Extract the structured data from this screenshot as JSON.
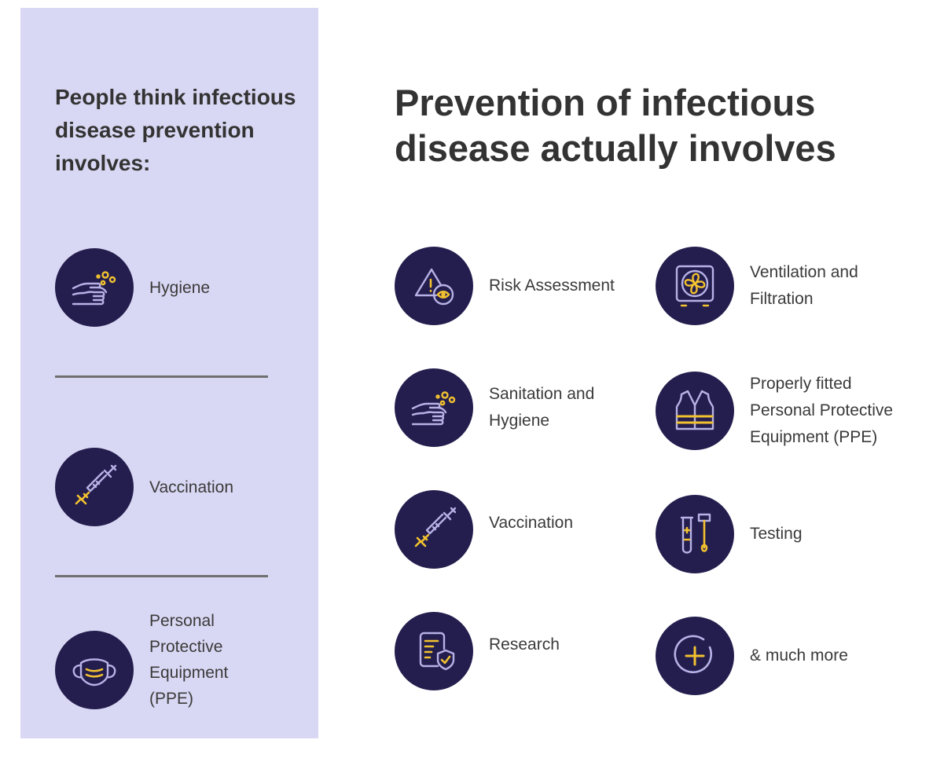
{
  "left": {
    "heading": "People think infectious disease prevention involves:",
    "items": [
      {
        "label": "Hygiene",
        "icon": "hands-washing-icon"
      },
      {
        "label": "Vaccination",
        "icon": "syringe-icon"
      },
      {
        "label": "Personal Protective Equipment (PPE)",
        "icon": "face-mask-icon"
      }
    ]
  },
  "right": {
    "heading": "Prevention of infectious disease actually involves",
    "items": [
      {
        "label": "Risk Assessment",
        "icon": "warning-eye-icon"
      },
      {
        "label": "Ventilation and Filtration",
        "icon": "fan-icon"
      },
      {
        "label": "Sanitation and Hygiene",
        "icon": "hands-washing-icon"
      },
      {
        "label": "Properly fitted Personal Protective Equipment (PPE)",
        "icon": "safety-vest-icon"
      },
      {
        "label": "Vaccination",
        "icon": "syringe-icon"
      },
      {
        "label": "Testing",
        "icon": "test-tube-swab-icon"
      },
      {
        "label": "Research",
        "icon": "document-shield-icon"
      },
      {
        "label": "& much more",
        "icon": "plus-circle-icon"
      }
    ]
  },
  "colors": {
    "panel": "#d9d8f4",
    "circle": "#241e4e",
    "icon_stroke": "#b7b2e6",
    "icon_accent": "#f2c230",
    "divider": "#707070"
  }
}
